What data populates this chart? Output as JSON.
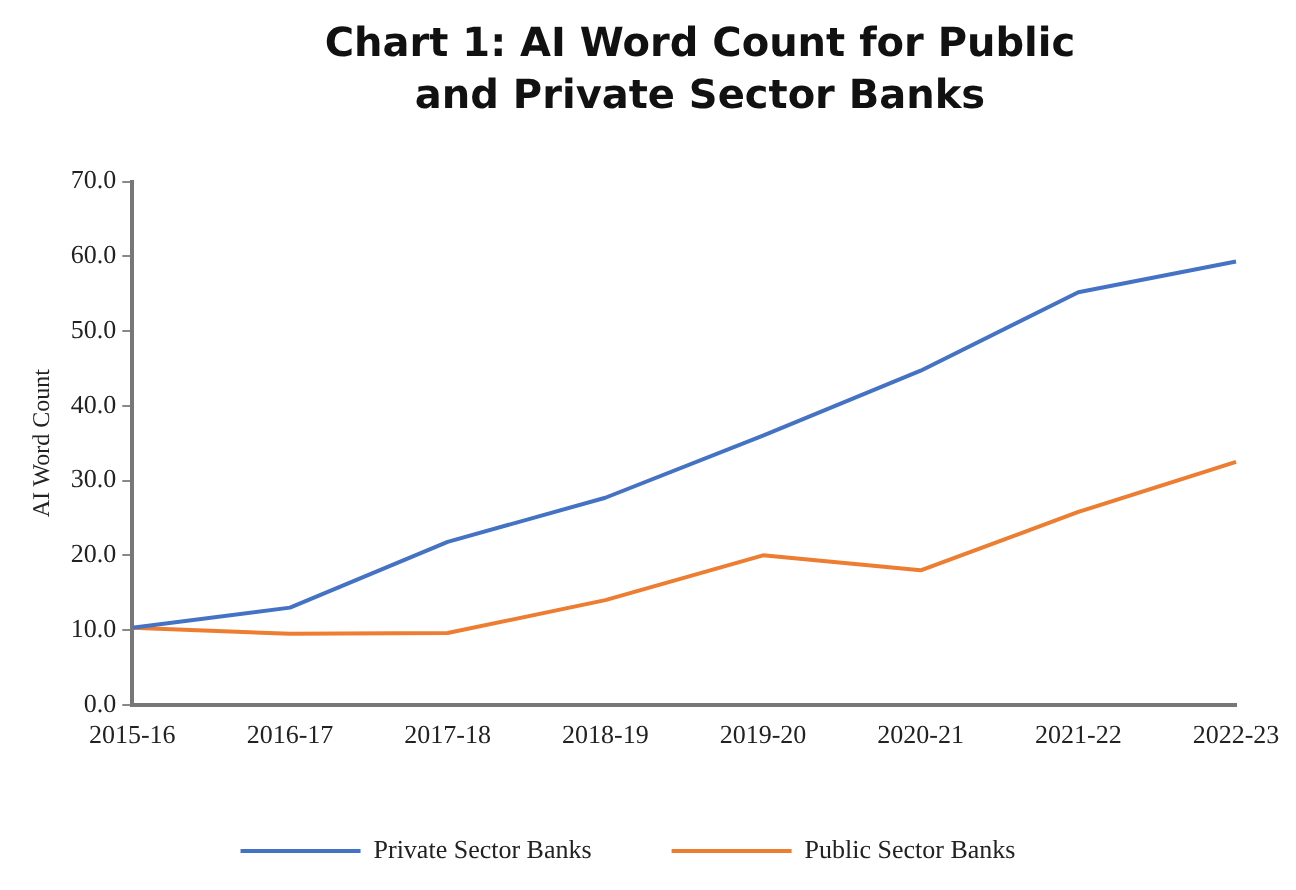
{
  "chart_data": {
    "type": "line",
    "title": "Chart 1: AI Word Count for Public\nand Private Sector Banks",
    "ylabel": "AI Word Count",
    "categories": [
      "2015-16",
      "2016-17",
      "2017-18",
      "2018-19",
      "2019-20",
      "2020-21",
      "2021-22",
      "2022-23"
    ],
    "series": [
      {
        "name": "Private Sector Banks",
        "color": "#4472c4",
        "values": [
          10.3,
          13.0,
          21.8,
          27.7,
          36.0,
          44.7,
          55.2,
          59.3
        ]
      },
      {
        "name": "Public Sector Banks",
        "color": "#ed7d31",
        "values": [
          10.3,
          9.5,
          9.6,
          14.0,
          20.0,
          18.0,
          25.8,
          32.5
        ]
      }
    ],
    "ylim": [
      0,
      70
    ],
    "yticks": [
      {
        "value": 0,
        "label": "0.0"
      },
      {
        "value": 10,
        "label": "10.0"
      },
      {
        "value": 20,
        "label": "20.0"
      },
      {
        "value": 30,
        "label": "30.0"
      },
      {
        "value": 40,
        "label": "40.0"
      },
      {
        "value": 50,
        "label": "50.0"
      },
      {
        "value": 60,
        "label": "60.0"
      },
      {
        "value": 70,
        "label": "70.0"
      }
    ],
    "grid": false,
    "legend": "bottom",
    "marker": "none",
    "line_style": "solid"
  }
}
